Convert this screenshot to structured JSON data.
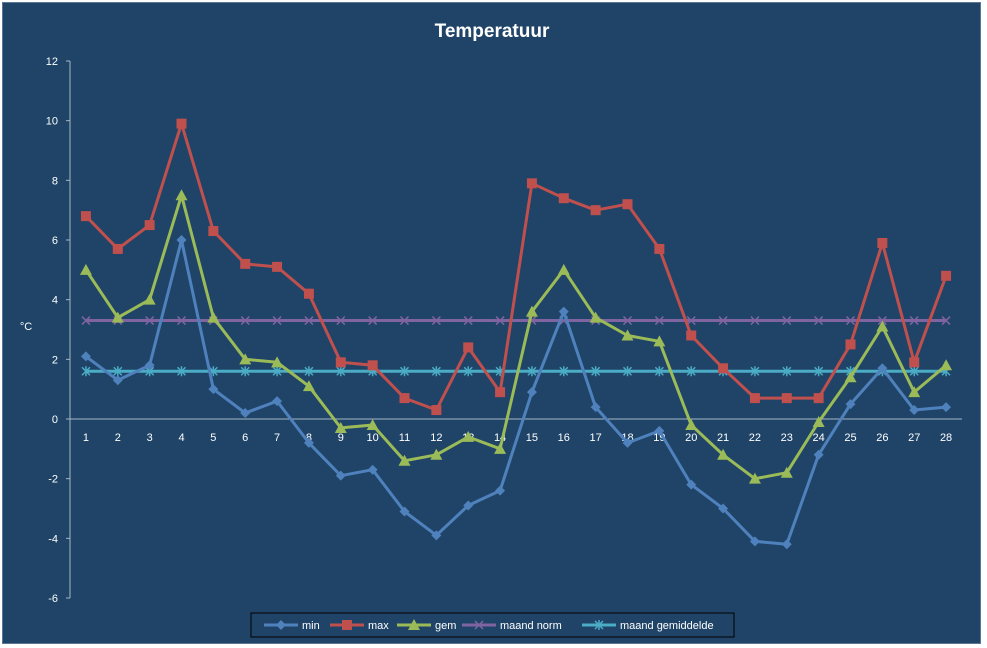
{
  "chart_data": {
    "type": "line",
    "title": "Temperatuur",
    "xlabel": "",
    "ylabel": "°C",
    "x": [
      "1",
      "2",
      "3",
      "4",
      "5",
      "6",
      "7",
      "8",
      "9",
      "10",
      "11",
      "12",
      "13",
      "14",
      "15",
      "16",
      "17",
      "18",
      "19",
      "20",
      "21",
      "22",
      "23",
      "24",
      "25",
      "26",
      "27",
      "28"
    ],
    "ylim": [
      -6,
      12
    ],
    "yticks": [
      "-6",
      "-4",
      "-2",
      "0",
      "2",
      "4",
      "6",
      "8",
      "10",
      "12"
    ],
    "grid": false,
    "legend_position": "bottom",
    "series": [
      {
        "name": "min",
        "color": "#4f81bd",
        "marker": "diamond",
        "values": [
          2.1,
          1.3,
          1.8,
          6.0,
          1.0,
          0.2,
          0.6,
          -0.8,
          -1.9,
          -1.7,
          -3.1,
          -3.9,
          -2.9,
          -2.4,
          0.9,
          3.6,
          0.4,
          -0.8,
          -0.4,
          -2.2,
          -3.0,
          -4.1,
          -4.2,
          -1.2,
          0.5,
          1.7,
          0.3,
          0.4
        ]
      },
      {
        "name": "max",
        "color": "#c0504d",
        "marker": "square",
        "values": [
          6.8,
          5.7,
          6.5,
          9.9,
          6.3,
          5.2,
          5.1,
          4.2,
          1.9,
          1.8,
          0.7,
          0.3,
          2.4,
          0.9,
          7.9,
          7.4,
          7.0,
          7.2,
          5.7,
          2.8,
          1.7,
          0.7,
          0.7,
          0.7,
          2.5,
          5.9,
          1.9,
          4.8
        ]
      },
      {
        "name": "gem",
        "color": "#9bbb59",
        "marker": "triangle",
        "values": [
          5.0,
          3.4,
          4.0,
          7.5,
          3.4,
          2.0,
          1.9,
          1.1,
          -0.3,
          -0.2,
          -1.4,
          -1.2,
          -0.6,
          -1.0,
          3.6,
          5.0,
          3.4,
          2.8,
          2.6,
          -0.2,
          -1.2,
          -2.0,
          -1.8,
          -0.1,
          1.4,
          3.1,
          0.9,
          1.8
        ]
      },
      {
        "name": "maand norm",
        "color": "#8064a2",
        "marker": "x",
        "values": [
          3.3,
          3.3,
          3.3,
          3.3,
          3.3,
          3.3,
          3.3,
          3.3,
          3.3,
          3.3,
          3.3,
          3.3,
          3.3,
          3.3,
          3.3,
          3.3,
          3.3,
          3.3,
          3.3,
          3.3,
          3.3,
          3.3,
          3.3,
          3.3,
          3.3,
          3.3,
          3.3,
          3.3
        ]
      },
      {
        "name": "maand gemiddelde",
        "color": "#4bacc6",
        "marker": "star",
        "values": [
          1.6,
          1.6,
          1.6,
          1.6,
          1.6,
          1.6,
          1.6,
          1.6,
          1.6,
          1.6,
          1.6,
          1.6,
          1.6,
          1.6,
          1.6,
          1.6,
          1.6,
          1.6,
          1.6,
          1.6,
          1.6,
          1.6,
          1.6,
          1.6,
          1.6,
          1.6,
          1.6,
          1.6
        ]
      }
    ]
  }
}
